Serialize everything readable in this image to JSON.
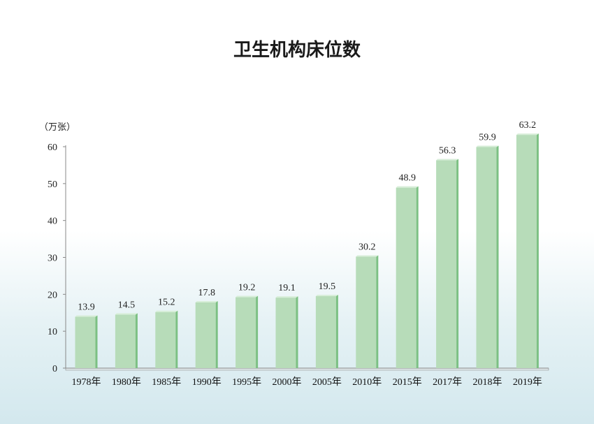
{
  "chart_data": {
    "type": "bar",
    "title": "卫生机构床位数",
    "unit_label": "（万张）",
    "categories": [
      "1978年",
      "1980年",
      "1985年",
      "1990年",
      "1995年",
      "2000年",
      "2005年",
      "2010年",
      "2015年",
      "2017年",
      "2018年",
      "2019年"
    ],
    "values": [
      13.9,
      14.5,
      15.2,
      17.8,
      19.2,
      19.1,
      19.5,
      30.2,
      48.9,
      56.3,
      59.9,
      63.2
    ],
    "value_labels": [
      "13.9",
      "14.5",
      "15.2",
      "17.8",
      "19.2",
      "19.1",
      "19.5",
      "30.2",
      "48.9",
      "56.3",
      "59.9",
      "63.2"
    ],
    "ylim": [
      0,
      60
    ],
    "yticks": [
      "0",
      "10",
      "20",
      "30",
      "40",
      "50",
      "60"
    ],
    "grid": false,
    "legend": "none",
    "colors": {
      "bar_front": "#b7dcb9",
      "bar_side": "#7cc083",
      "bar_top": "#d8eed9",
      "axis": "#888888",
      "floor": "#dfe8ea"
    }
  }
}
